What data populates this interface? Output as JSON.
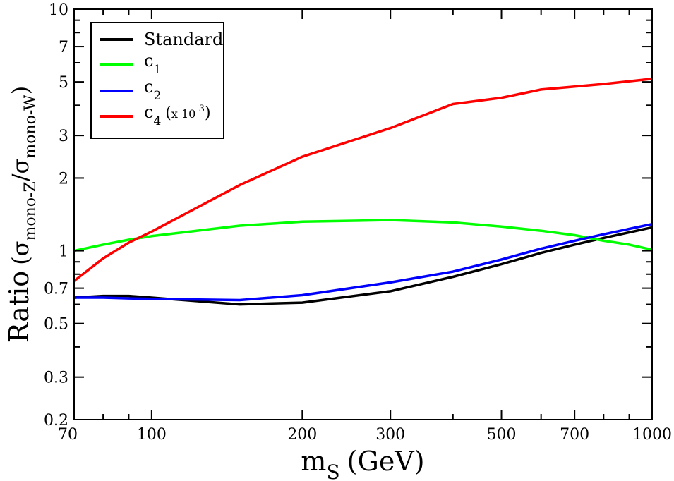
{
  "chart_data": {
    "type": "line",
    "title": "",
    "xlabel": {
      "main": "m",
      "sub": "S",
      "unit": "(GeV)"
    },
    "ylabel": {
      "main": "Ratio",
      "open": "(",
      "sigma1": "σ",
      "sub1": "mono-Z",
      "slash": "/",
      "sigma2": "σ",
      "sub2": "mono-W",
      "close": ")"
    },
    "x_scale": "log",
    "y_scale": "log",
    "xlim": [
      70,
      1000
    ],
    "ylim": [
      0.2,
      10
    ],
    "x_ticks": [
      70,
      100,
      200,
      300,
      500,
      700,
      1000
    ],
    "x_tick_labels": [
      "70",
      "100",
      "200",
      "300",
      "500",
      "700",
      "1000"
    ],
    "x_minor_ticks": [
      80,
      90,
      400,
      600,
      800,
      900
    ],
    "y_ticks": [
      0.2,
      0.3,
      0.5,
      0.7,
      1,
      2,
      3,
      5,
      7,
      10
    ],
    "y_tick_labels": [
      "0.2",
      "0.3",
      "0.5",
      "0.7",
      "1",
      "2",
      "3",
      "5",
      "7",
      "10"
    ],
    "y_minor_ticks": [
      0.4,
      0.6,
      0.8,
      0.9,
      4,
      6,
      8,
      9
    ],
    "legend_position": "top-left",
    "series": [
      {
        "name": "Standard",
        "color": "#000000",
        "x": [
          70,
          80,
          90,
          100,
          150,
          200,
          300,
          400,
          500,
          600,
          700,
          800,
          1000
        ],
        "y": [
          0.64,
          0.65,
          0.65,
          0.64,
          0.6,
          0.61,
          0.68,
          0.78,
          0.88,
          0.98,
          1.06,
          1.13,
          1.25
        ]
      },
      {
        "name": "c",
        "name_sub": "1",
        "color": "#00ff00",
        "x": [
          70,
          80,
          90,
          100,
          150,
          200,
          300,
          400,
          500,
          600,
          700,
          800,
          900,
          1000
        ],
        "y": [
          1.0,
          1.06,
          1.11,
          1.15,
          1.27,
          1.32,
          1.34,
          1.31,
          1.26,
          1.21,
          1.16,
          1.1,
          1.06,
          1.01
        ]
      },
      {
        "name": "c",
        "name_sub": "2",
        "color": "#0000ff",
        "x": [
          70,
          80,
          90,
          100,
          150,
          200,
          300,
          400,
          500,
          600,
          700,
          800,
          1000
        ],
        "y": [
          0.64,
          0.64,
          0.635,
          0.632,
          0.625,
          0.655,
          0.74,
          0.82,
          0.92,
          1.02,
          1.1,
          1.17,
          1.29
        ]
      },
      {
        "name": "c",
        "name_sub": "4",
        "name_suffix": "(",
        "scale_base": "x 10",
        "scale_exp": "-3",
        "name_close": ")",
        "color": "#ff0000",
        "x": [
          70,
          80,
          90,
          100,
          150,
          200,
          300,
          400,
          500,
          600,
          700,
          800,
          1000
        ],
        "y": [
          0.75,
          0.93,
          1.08,
          1.2,
          1.87,
          2.45,
          3.22,
          4.05,
          4.3,
          4.65,
          4.78,
          4.9,
          5.15
        ]
      }
    ]
  }
}
